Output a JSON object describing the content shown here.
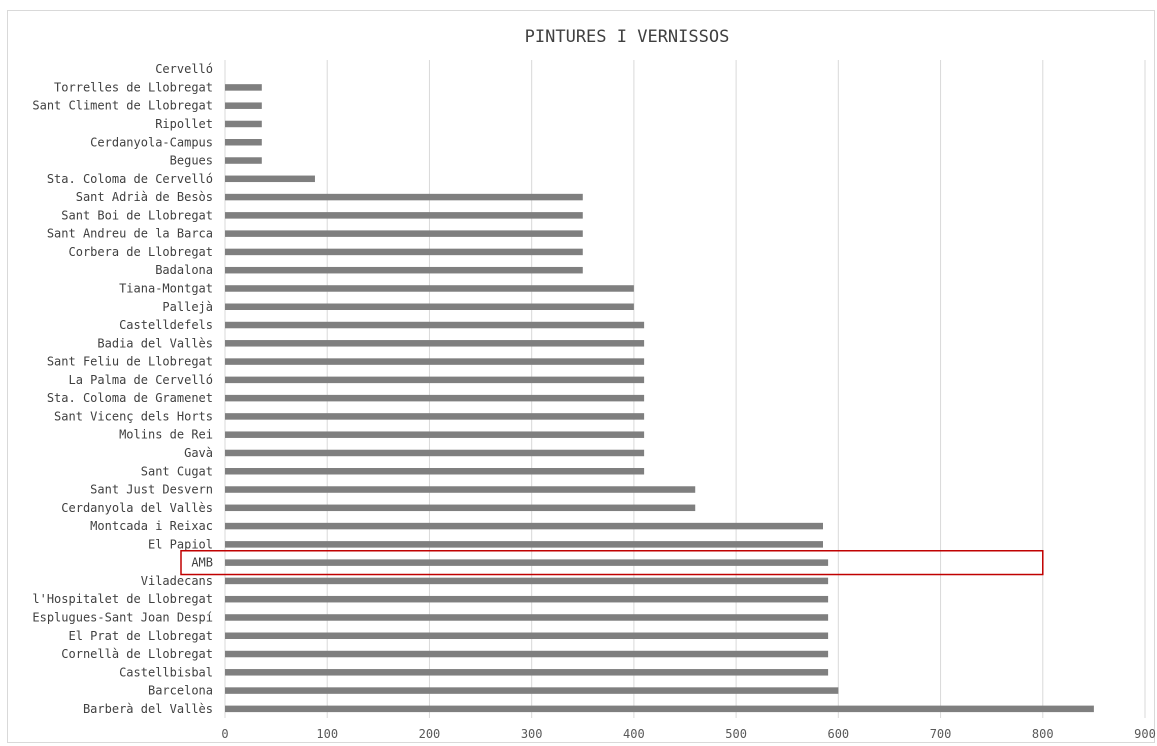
{
  "chart_data": {
    "type": "bar",
    "orientation": "horizontal",
    "title": "PINTURES I VERNISSOS",
    "categories": [
      "Cervelló",
      "Torrelles de Llobregat",
      "Sant Climent de Llobregat",
      "Ripollet",
      "Cerdanyola-Campus",
      "Begues",
      "Sta. Coloma de Cervelló",
      "Sant Adrià de Besòs",
      "Sant Boi de Llobregat",
      "Sant Andreu de la Barca",
      "Corbera de Llobregat",
      "Badalona",
      "Tiana-Montgat",
      "Pallejà",
      "Castelldefels",
      "Badia del Vallès",
      "Sant Feliu de Llobregat",
      "La Palma de Cervelló",
      "Sta. Coloma de Gramenet",
      "Sant Vicenç dels Horts",
      "Molins de Rei",
      "Gavà",
      "Sant Cugat",
      "Sant Just Desvern",
      "Cerdanyola del Vallès",
      "Montcada i Reixac",
      "El Papiol",
      "AMB",
      "Viladecans",
      "l'Hospitalet de Llobregat",
      "Esplugues-Sant Joan Despí",
      "El Prat de Llobregat",
      "Cornellà de Llobregat",
      "Castellbisbal",
      "Barcelona",
      "Barberà del Vallès"
    ],
    "values": [
      0,
      36,
      36,
      36,
      36,
      36,
      88,
      350,
      350,
      350,
      350,
      350,
      400,
      400,
      410,
      410,
      410,
      410,
      410,
      410,
      410,
      410,
      410,
      460,
      460,
      585,
      585,
      590,
      590,
      590,
      590,
      590,
      590,
      590,
      600,
      850
    ],
    "xlim": [
      0,
      900
    ],
    "xticks": [
      0,
      100,
      200,
      300,
      400,
      500,
      600,
      700,
      800,
      900
    ],
    "grid": true,
    "highlight": "AMB",
    "colors": {
      "bar": "#7f7f7f",
      "grid": "#d9d9d9",
      "highlight": "#c00000"
    }
  }
}
